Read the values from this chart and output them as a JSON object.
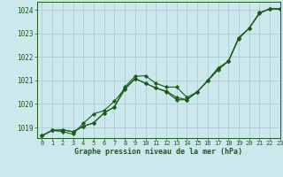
{
  "title": "Graphe pression niveau de la mer (hPa)",
  "background_color": "#cde8ec",
  "grid_color": "#aacdd4",
  "line_color": "#1a5c1a",
  "xlim": [
    -0.5,
    23
  ],
  "ylim": [
    1018.55,
    1024.35
  ],
  "yticks": [
    1019,
    1020,
    1021,
    1022,
    1023,
    1024
  ],
  "xticks": [
    0,
    1,
    2,
    3,
    4,
    5,
    6,
    7,
    8,
    9,
    10,
    11,
    12,
    13,
    14,
    15,
    16,
    17,
    18,
    19,
    20,
    21,
    22,
    23
  ],
  "series": [
    [
      1018.65,
      1018.88,
      1018.9,
      1018.82,
      1019.05,
      1019.2,
      1019.62,
      1019.88,
      1020.72,
      1021.18,
      1021.2,
      1020.88,
      1020.72,
      1020.72,
      1020.28,
      1020.52,
      1021.0,
      1021.52,
      1021.82,
      1022.82,
      1023.22,
      1023.88,
      1024.05,
      1024.05
    ],
    [
      1018.65,
      1018.88,
      1018.9,
      1018.82,
      1019.05,
      1019.2,
      1019.62,
      1019.88,
      1020.62,
      1021.08,
      1020.88,
      1020.68,
      1020.52,
      1020.18,
      1020.18,
      1020.52,
      1021.0,
      1021.52,
      1021.82,
      1022.82,
      1023.22,
      1023.88,
      1024.05,
      1024.05
    ],
    [
      1018.65,
      1018.88,
      1018.82,
      1018.72,
      1019.18,
      1019.58,
      1019.72,
      1020.12,
      1020.65,
      1021.08,
      1020.88,
      1020.68,
      1020.55,
      1020.28,
      1020.18,
      1020.52,
      1020.98,
      1021.45,
      1021.82,
      1022.78,
      1023.22,
      1023.85,
      1024.05,
      1024.05
    ]
  ]
}
